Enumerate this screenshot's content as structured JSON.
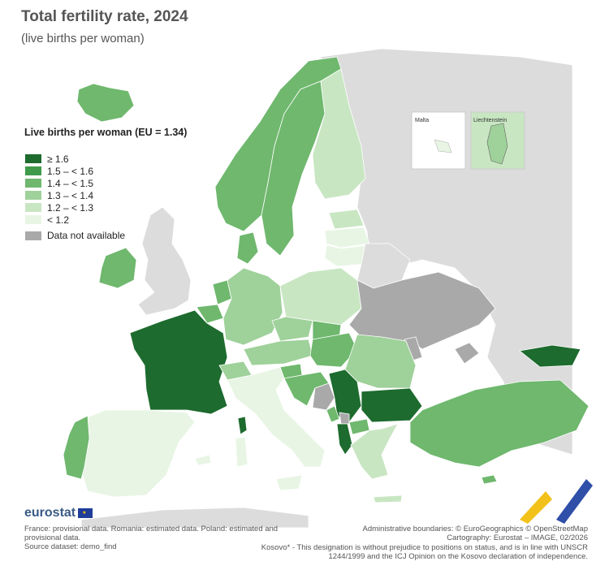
{
  "header": {
    "title": "Total fertility rate, 2024",
    "subtitle": "(live births per woman)"
  },
  "legend": {
    "title": "Live births per woman (EU = 1.34)",
    "classes": [
      {
        "label": "≥ 1.6",
        "color": "#1d6b2e"
      },
      {
        "label": "1.5 – < 1.6",
        "color": "#3f9a4a"
      },
      {
        "label": "1.4 – < 1.5",
        "color": "#6fb86e"
      },
      {
        "label": "1.3 – < 1.4",
        "color": "#9fd19a"
      },
      {
        "label": "1.2 – < 1.3",
        "color": "#c8e6c2"
      },
      {
        "label": "< 1.2",
        "color": "#e8f5e4"
      }
    ],
    "not_available": {
      "label": "Data not available",
      "color": "#a9a9a9"
    }
  },
  "insets": {
    "malta": "Malta",
    "liechtenstein": "Liechtenstein"
  },
  "footer": {
    "logo_text": "eurostat",
    "notes_line1": "France: provisional data. Romania: estimated data. Poland: estimated and provisional data.",
    "notes_line2": "Source dataset: demo_find",
    "credits_line1": "Administrative boundaries: © EuroGeographics © OpenStreetMap",
    "credits_line2": "Cartography: Eurostat – IMAGE, 02/2026",
    "kosovo_note": "Kosovo* - This designation is without prejudice to positions on status, and is in line with UNSCR 1244/1999 and the ICJ Opinion on the Kosovo declaration of independence."
  },
  "colors": {
    "non_eu": "#dcdcdc",
    "sea": "#ffffff",
    "border": "#ffffff"
  }
}
